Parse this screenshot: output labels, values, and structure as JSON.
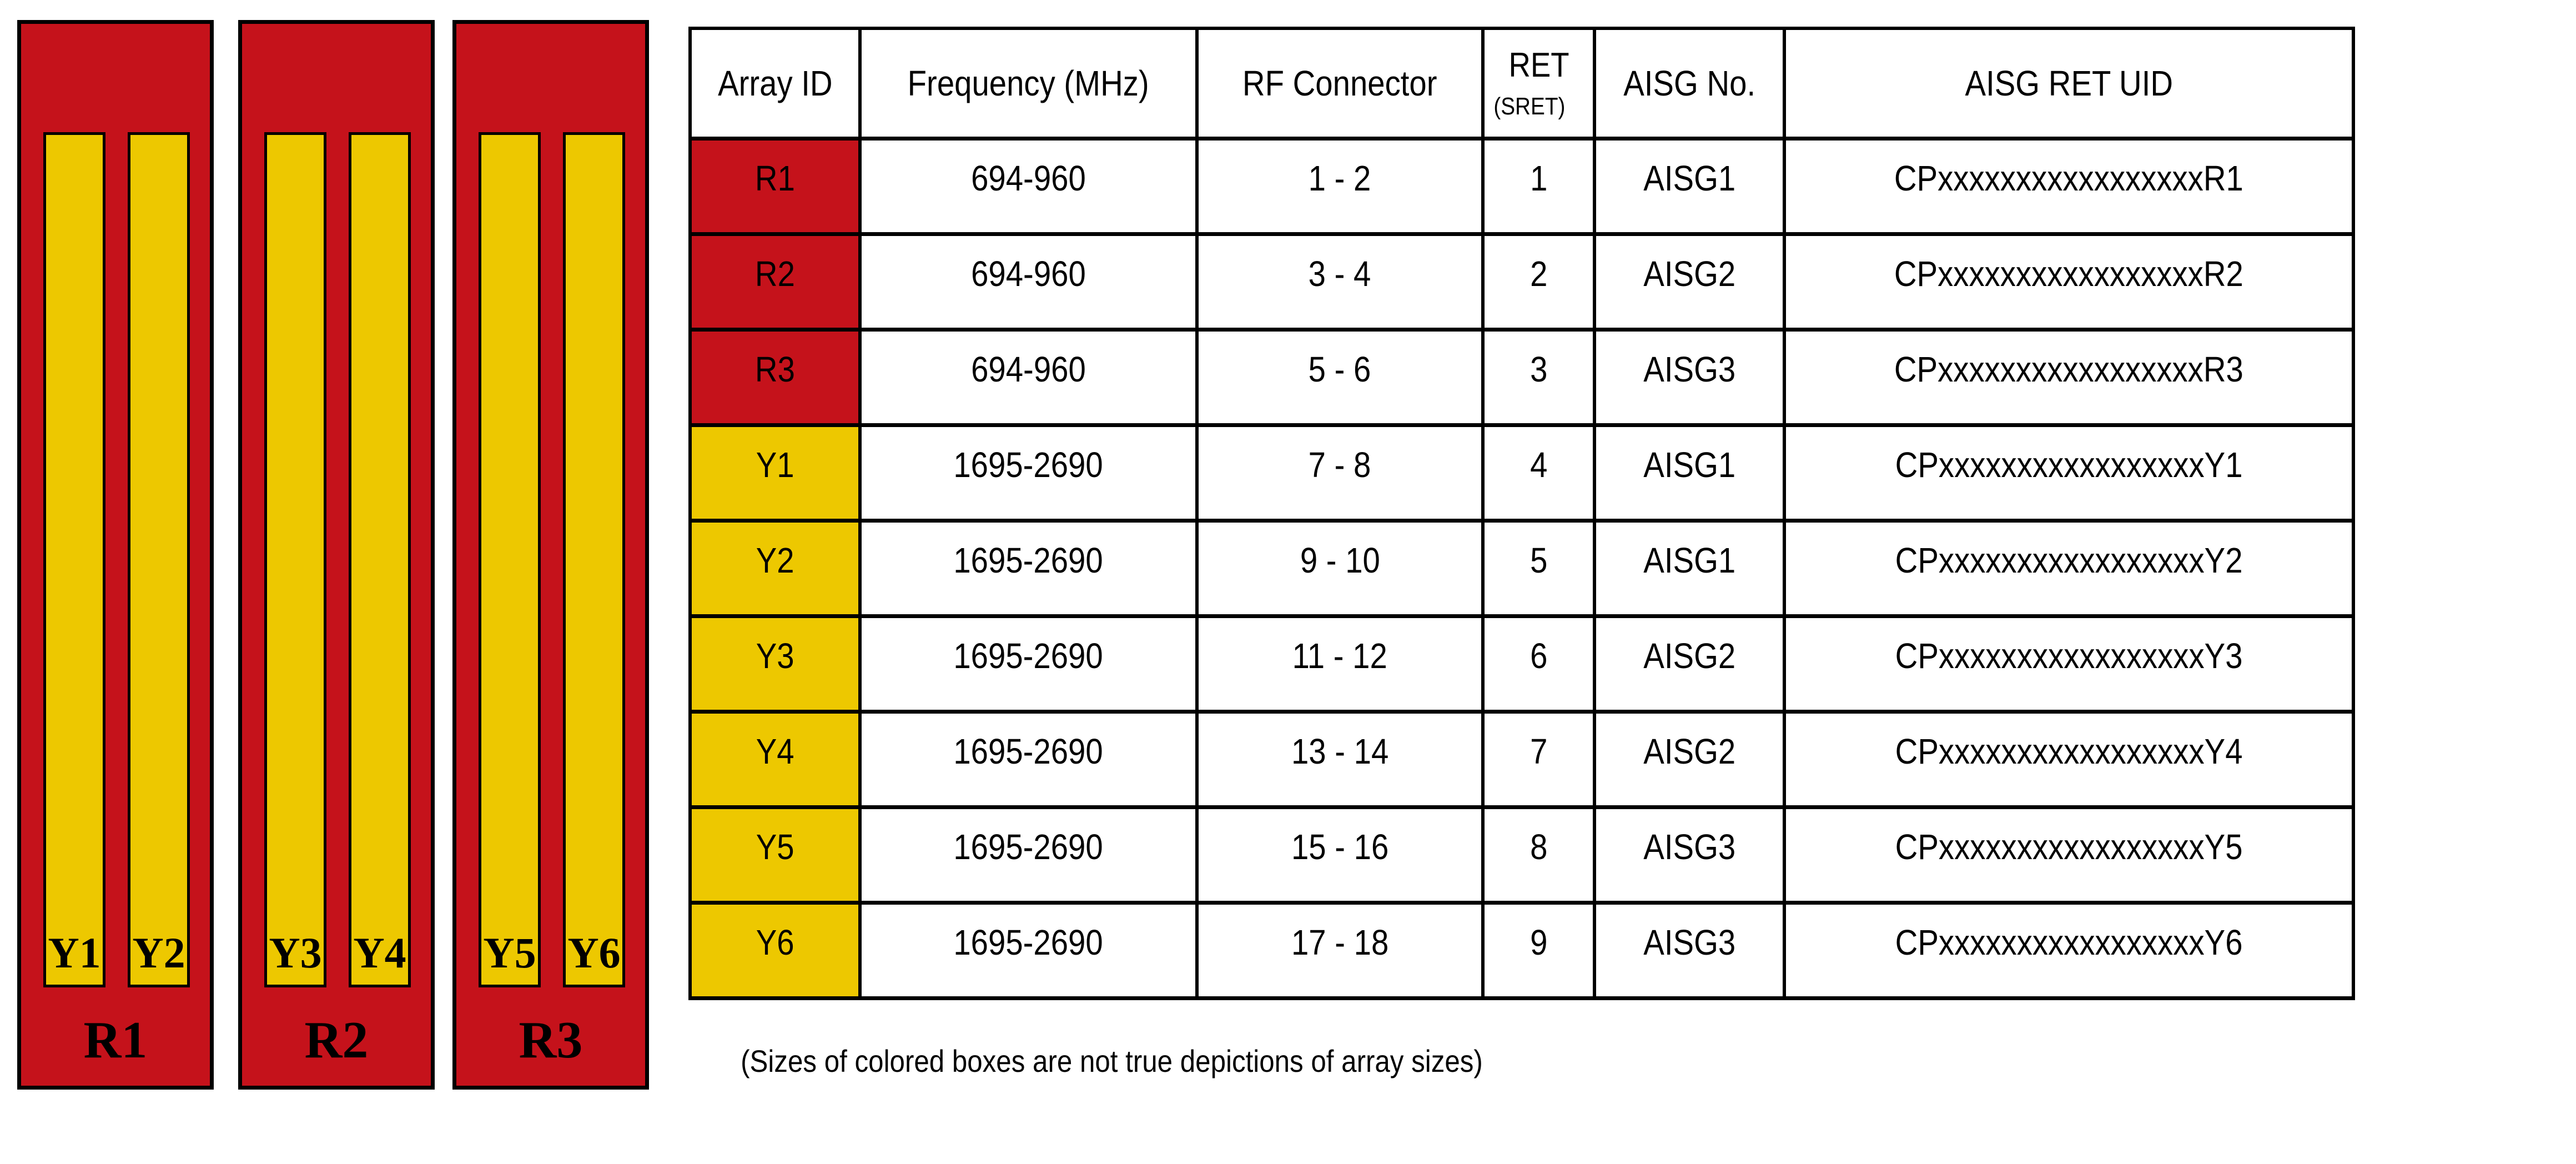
{
  "diagram": {
    "red_hex": "#C5121B",
    "yellow_hex": "#EDC800",
    "panels": [
      {
        "label": "R1",
        "bar_labels": [
          "Y1",
          "Y2"
        ]
      },
      {
        "label": "R2",
        "bar_labels": [
          "Y3",
          "Y4"
        ]
      },
      {
        "label": "R3",
        "bar_labels": [
          "Y5",
          "Y6"
        ]
      }
    ]
  },
  "table": {
    "headers": {
      "array_id": "Array ID",
      "frequency": "Frequency (MHz)",
      "rf_connector": "RF Connector",
      "ret": "RET",
      "ret_sub": "(SRET)",
      "aisg_no": "AISG No.",
      "aisg_ret_uid": "AISG RET UID"
    },
    "rows": [
      {
        "array_id": "R1",
        "color": "#C5121B",
        "frequency": "694-960",
        "rf_connector": "1 - 2",
        "ret": "1",
        "aisg_no": "AISG1",
        "aisg_ret_uid": "CPxxxxxxxxxxxxxxxxxR1"
      },
      {
        "array_id": "R2",
        "color": "#C5121B",
        "frequency": "694-960",
        "rf_connector": "3 - 4",
        "ret": "2",
        "aisg_no": "AISG2",
        "aisg_ret_uid": "CPxxxxxxxxxxxxxxxxxR2"
      },
      {
        "array_id": "R3",
        "color": "#C5121B",
        "frequency": "694-960",
        "rf_connector": "5 - 6",
        "ret": "3",
        "aisg_no": "AISG3",
        "aisg_ret_uid": "CPxxxxxxxxxxxxxxxxxR3"
      },
      {
        "array_id": "Y1",
        "color": "#EDC800",
        "frequency": "1695-2690",
        "rf_connector": "7 - 8",
        "ret": "4",
        "aisg_no": "AISG1",
        "aisg_ret_uid": "CPxxxxxxxxxxxxxxxxxY1"
      },
      {
        "array_id": "Y2",
        "color": "#EDC800",
        "frequency": "1695-2690",
        "rf_connector": "9 - 10",
        "ret": "5",
        "aisg_no": "AISG1",
        "aisg_ret_uid": "CPxxxxxxxxxxxxxxxxxY2"
      },
      {
        "array_id": "Y3",
        "color": "#EDC800",
        "frequency": "1695-2690",
        "rf_connector": "11 - 12",
        "ret": "6",
        "aisg_no": "AISG2",
        "aisg_ret_uid": "CPxxxxxxxxxxxxxxxxxY3"
      },
      {
        "array_id": "Y4",
        "color": "#EDC800",
        "frequency": "1695-2690",
        "rf_connector": "13 - 14",
        "ret": "7",
        "aisg_no": "AISG2",
        "aisg_ret_uid": "CPxxxxxxxxxxxxxxxxxY4"
      },
      {
        "array_id": "Y5",
        "color": "#EDC800",
        "frequency": "1695-2690",
        "rf_connector": "15 - 16",
        "ret": "8",
        "aisg_no": "AISG3",
        "aisg_ret_uid": "CPxxxxxxxxxxxxxxxxxY5"
      },
      {
        "array_id": "Y6",
        "color": "#EDC800",
        "frequency": "1695-2690",
        "rf_connector": "17 - 18",
        "ret": "9",
        "aisg_no": "AISG3",
        "aisg_ret_uid": "CPxxxxxxxxxxxxxxxxxY6"
      }
    ]
  },
  "note": "(Sizes of colored boxes are not true depictions of array sizes)"
}
